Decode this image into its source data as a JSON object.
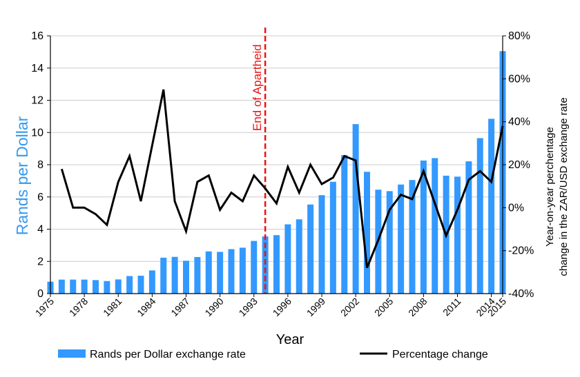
{
  "chart_data": {
    "type": "bar+line",
    "title": "",
    "xlabel": "Year",
    "ylabel": "Rands per Dollar",
    "ylabel_right": [
      "Year-on-year perchentage",
      "change in the ZAR/USD exchange rate"
    ],
    "ylim": [
      0,
      16
    ],
    "ylim_right": [
      -40,
      80
    ],
    "yticks": [
      "0",
      "2",
      "4",
      "6",
      "8",
      "10",
      "12",
      "14",
      "16"
    ],
    "yticks_right": [
      "-40%",
      "-20%",
      "0%",
      "20%",
      "40%",
      "60%",
      "80%"
    ],
    "xticks": [
      "1975",
      "1978",
      "1981",
      "1984",
      "1987",
      "1990",
      "1993",
      "1996",
      "1999",
      "2002",
      "2005",
      "2008",
      "2011",
      "2014",
      "2015"
    ],
    "x": [
      1975,
      1976,
      1977,
      1978,
      1979,
      1980,
      1981,
      1982,
      1983,
      1984,
      1985,
      1986,
      1987,
      1988,
      1989,
      1990,
      1991,
      1992,
      1993,
      1994,
      1995,
      1996,
      1997,
      1998,
      1999,
      2000,
      2001,
      2002,
      2003,
      2004,
      2005,
      2006,
      2007,
      2008,
      2009,
      2010,
      2011,
      2012,
      2013,
      2014,
      2015
    ],
    "series": [
      {
        "name": "Rands per Dollar exchange rate",
        "kind": "bar",
        "axis": "left",
        "color": "#3399ff",
        "values": [
          0.74,
          0.87,
          0.87,
          0.87,
          0.84,
          0.78,
          0.88,
          1.09,
          1.11,
          1.44,
          2.23,
          2.28,
          2.04,
          2.27,
          2.62,
          2.59,
          2.76,
          2.85,
          3.27,
          3.55,
          3.63,
          4.3,
          4.61,
          5.53,
          6.11,
          6.94,
          8.6,
          10.52,
          7.56,
          6.45,
          6.36,
          6.77,
          7.05,
          8.26,
          8.41,
          7.32,
          7.26,
          8.21,
          9.65,
          10.85,
          15.05
        ]
      },
      {
        "name": "Percentage change",
        "kind": "line",
        "axis": "right",
        "color": "#000000",
        "values": [
          null,
          18,
          0,
          0,
          -3,
          -8,
          12,
          24,
          3,
          29,
          55,
          3,
          -11,
          12,
          15,
          -1,
          7,
          3,
          15,
          9,
          2,
          19,
          7,
          20,
          11,
          14,
          24,
          22,
          -28,
          -15,
          -1,
          6,
          4,
          17,
          2,
          -13,
          -1,
          13,
          17,
          12,
          38
        ]
      }
    ],
    "annotations": [
      {
        "text": "End of Apartheid",
        "x": 1994,
        "color": "#ee1111",
        "style": "dashed-vertical-line"
      }
    ],
    "legend": {
      "placement": "bottom"
    },
    "grid": true,
    "colors": {
      "left_axis_label": "#3399ee",
      "grid": "#cccccc"
    }
  }
}
